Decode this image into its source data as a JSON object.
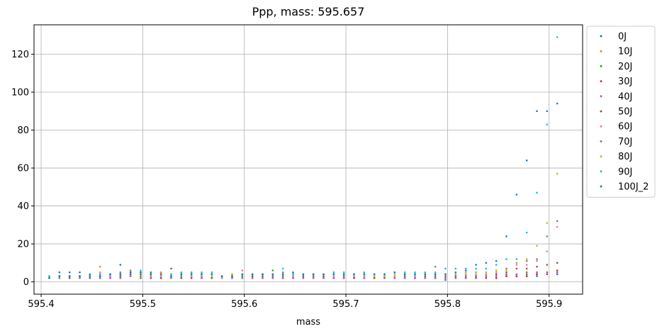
{
  "chart_data": {
    "type": "scatter",
    "title": "Ppp, mass: 595.657",
    "xlabel": "mass",
    "ylabel": "",
    "xlim": [
      595.393,
      595.933
    ],
    "ylim": [
      -6.5,
      135.5
    ],
    "xticks": [
      595.4,
      595.5,
      595.6,
      595.7,
      595.8,
      595.9
    ],
    "xtick_labels": [
      "595.4",
      "595.5",
      "595.6",
      "595.7",
      "595.8",
      "595.9"
    ],
    "yticks": [
      0,
      20,
      40,
      60,
      80,
      100,
      120
    ],
    "ytick_labels": [
      "0",
      "20",
      "40",
      "60",
      "80",
      "100",
      "120"
    ],
    "grid": true,
    "legend_position": "outside-right-top",
    "x": [
      595.408,
      595.418,
      595.428,
      595.438,
      595.448,
      595.458,
      595.468,
      595.478,
      595.488,
      595.498,
      595.508,
      595.518,
      595.528,
      595.538,
      595.548,
      595.558,
      595.568,
      595.578,
      595.588,
      595.598,
      595.608,
      595.618,
      595.628,
      595.638,
      595.648,
      595.658,
      595.668,
      595.678,
      595.688,
      595.698,
      595.708,
      595.718,
      595.728,
      595.738,
      595.748,
      595.758,
      595.768,
      595.778,
      595.788,
      595.798,
      595.808,
      595.818,
      595.828,
      595.838,
      595.848,
      595.858,
      595.868,
      595.878,
      595.888,
      595.898,
      595.908
    ],
    "series": [
      {
        "name": "0J",
        "color": "#1f77b4",
        "values": [
          2,
          5,
          5,
          5,
          4,
          3,
          4,
          9,
          5,
          5,
          3,
          2,
          3,
          2,
          3,
          2,
          2,
          2,
          3,
          2,
          3,
          2,
          2,
          2,
          2,
          3,
          2,
          2,
          2,
          2,
          2,
          2,
          2,
          2,
          2,
          2,
          2,
          2,
          2,
          1,
          2,
          2,
          2,
          3,
          2,
          3,
          3,
          3,
          3,
          5,
          4
        ]
      },
      {
        "name": "10J",
        "color": "#ff7f0e",
        "values": [
          2,
          2,
          3,
          2,
          2,
          8,
          2,
          3,
          3,
          4,
          5,
          5,
          2,
          2,
          3,
          3,
          2,
          2,
          3,
          3,
          2,
          2,
          3,
          2,
          3,
          2,
          2,
          3,
          2,
          2,
          3,
          2,
          2,
          2,
          2,
          3,
          2,
          3,
          2,
          2,
          3,
          2,
          3,
          3,
          4,
          4,
          4,
          5,
          5,
          5,
          5
        ]
      },
      {
        "name": "20J",
        "color": "#2ca02c",
        "values": [
          3,
          3,
          2,
          3,
          2,
          3,
          3,
          2,
          4,
          3,
          5,
          4,
          2,
          3,
          3,
          2,
          2,
          2,
          2,
          3,
          2,
          2,
          6,
          2,
          2,
          2,
          2,
          2,
          2,
          2,
          2,
          2,
          2,
          2,
          2,
          2,
          2,
          2,
          2,
          2,
          2,
          2,
          2,
          3,
          3,
          4,
          4,
          4,
          4,
          5,
          5
        ]
      },
      {
        "name": "30J",
        "color": "#d62728",
        "values": [
          2,
          2,
          2,
          2,
          2,
          3,
          2,
          2,
          3,
          2,
          2,
          2,
          2,
          2,
          2,
          2,
          2,
          2,
          2,
          2,
          2,
          2,
          2,
          2,
          2,
          2,
          2,
          2,
          2,
          2,
          2,
          2,
          2,
          2,
          2,
          2,
          2,
          2,
          2,
          2,
          2,
          2,
          2,
          2,
          2,
          3,
          3,
          3,
          4,
          4,
          6
        ]
      },
      {
        "name": "40J",
        "color": "#9467bd",
        "values": [
          2,
          2,
          2,
          2,
          2,
          3,
          2,
          2,
          3,
          2,
          3,
          3,
          2,
          2,
          3,
          2,
          2,
          2,
          2,
          2,
          2,
          2,
          2,
          2,
          2,
          2,
          2,
          2,
          2,
          2,
          2,
          2,
          2,
          2,
          2,
          2,
          2,
          2,
          2,
          2,
          2,
          2,
          2,
          3,
          3,
          4,
          4,
          5,
          5,
          5,
          5
        ]
      },
      {
        "name": "50J",
        "color": "#8c564b",
        "values": [
          2,
          3,
          2,
          3,
          2,
          2,
          3,
          3,
          4,
          4,
          3,
          3,
          7,
          2,
          3,
          3,
          2,
          2,
          3,
          4,
          3,
          3,
          3,
          3,
          3,
          3,
          3,
          3,
          3,
          3,
          2,
          3,
          2,
          3,
          3,
          3,
          3,
          3,
          3,
          3,
          3,
          3,
          3,
          4,
          4,
          5,
          7,
          7,
          8,
          9,
          10
        ]
      },
      {
        "name": "60J",
        "color": "#e377c2",
        "values": [
          2,
          2,
          3,
          3,
          3,
          5,
          3,
          4,
          5,
          5,
          3,
          3,
          4,
          4,
          3,
          3,
          3,
          2,
          3,
          6,
          4,
          4,
          4,
          4,
          3,
          4,
          4,
          4,
          3,
          4,
          3,
          3,
          3,
          3,
          3,
          4,
          3,
          4,
          4,
          4,
          4,
          4,
          4,
          4,
          5,
          6,
          9,
          9,
          11,
          16,
          29
        ]
      },
      {
        "name": "70J",
        "color": "#7f7f7f",
        "values": [
          2,
          2,
          3,
          3,
          3,
          4,
          4,
          5,
          6,
          5,
          4,
          4,
          4,
          4,
          4,
          4,
          4,
          3,
          4,
          4,
          4,
          4,
          4,
          5,
          4,
          4,
          4,
          4,
          4,
          4,
          4,
          4,
          3,
          3,
          5,
          4,
          4,
          4,
          8,
          4,
          4,
          5,
          5,
          5,
          6,
          7,
          10,
          11,
          12,
          24,
          32
        ]
      },
      {
        "name": "80J",
        "color": "#bcbd22",
        "values": [
          3,
          3,
          3,
          3,
          3,
          4,
          4,
          4,
          5,
          5,
          4,
          4,
          4,
          4,
          4,
          4,
          3,
          3,
          4,
          4,
          4,
          4,
          4,
          4,
          4,
          4,
          4,
          4,
          4,
          4,
          4,
          4,
          3,
          3,
          4,
          4,
          4,
          4,
          4,
          4,
          4,
          5,
          5,
          5,
          6,
          6,
          10,
          12,
          19,
          31,
          57
        ]
      },
      {
        "name": "90J",
        "color": "#17becf",
        "values": [
          3,
          3,
          3,
          3,
          3,
          4,
          4,
          4,
          5,
          6,
          4,
          4,
          4,
          5,
          5,
          5,
          5,
          3,
          3,
          4,
          4,
          4,
          4,
          7,
          4,
          4,
          4,
          4,
          5,
          5,
          4,
          5,
          4,
          4,
          5,
          5,
          5,
          5,
          5,
          7,
          7,
          7,
          7,
          7,
          9,
          12,
          12,
          26,
          47,
          83,
          129
        ]
      },
      {
        "name": "100J_2",
        "color": "#1f77b4",
        "values": [
          2,
          3,
          3,
          3,
          3,
          3,
          4,
          4,
          5,
          5,
          4,
          4,
          3,
          4,
          4,
          4,
          4,
          3,
          3,
          4,
          4,
          4,
          4,
          4,
          5,
          4,
          4,
          4,
          4,
          4,
          4,
          4,
          4,
          4,
          5,
          4,
          4,
          4,
          4,
          4,
          5,
          6,
          9,
          10,
          11,
          24,
          46,
          64,
          90,
          90,
          94
        ]
      }
    ]
  }
}
